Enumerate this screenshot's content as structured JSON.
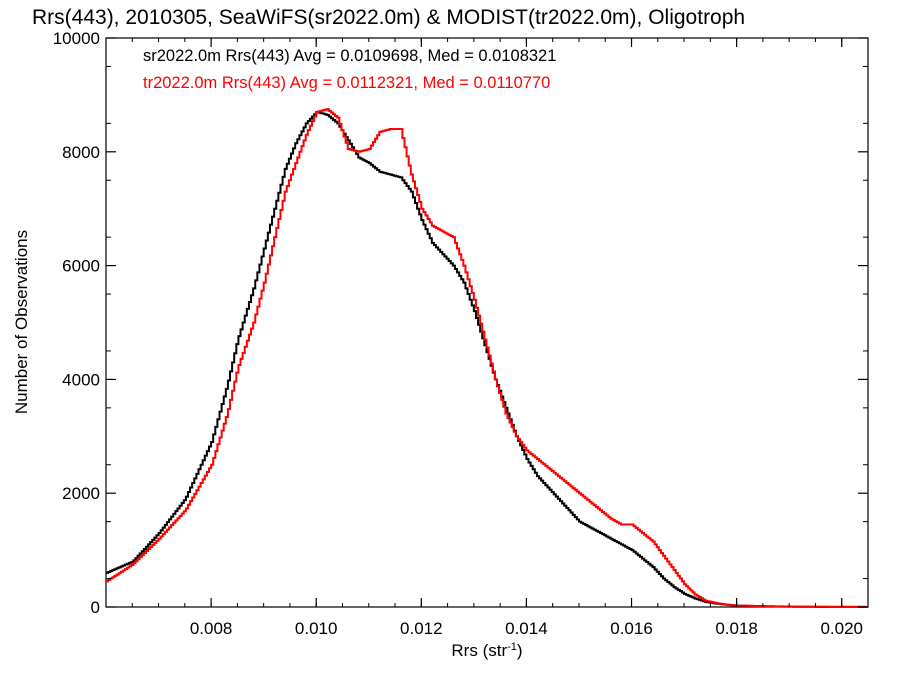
{
  "chart_data": {
    "type": "line",
    "title": "Rrs(443), 2010305, SeaWiFS(sr2022.0m) & MODIST(tr2022.0m), Oligotroph",
    "xlabel_main": "Rrs (str",
    "xlabel_sup": "-1",
    "xlabel_close": ")",
    "ylabel": "Number of Observations",
    "xlim": [
      0.006,
      0.0205
    ],
    "ylim": [
      0,
      10000
    ],
    "xticks": [
      0.008,
      0.01,
      0.012,
      0.014,
      0.016,
      0.018,
      0.02
    ],
    "xtick_labels": [
      "0.008",
      "0.010",
      "0.012",
      "0.014",
      "0.016",
      "0.018",
      "0.020"
    ],
    "yticks": [
      0,
      2000,
      4000,
      6000,
      8000,
      10000
    ],
    "ytick_labels": [
      "0",
      "2000",
      "4000",
      "6000",
      "8000",
      "10000"
    ],
    "grid": false,
    "legend_position": "top-left",
    "colors": {
      "series1": "#000000",
      "series2": "#ff0000"
    },
    "series": [
      {
        "name": "sr2022.0m Rrs(443) Avg = 0.0109698, Med = 0.0108321",
        "x": [
          0.006,
          0.0065,
          0.007,
          0.0075,
          0.008,
          0.0083,
          0.0085,
          0.0088,
          0.009,
          0.0092,
          0.0094,
          0.0096,
          0.0098,
          0.01,
          0.0102,
          0.0104,
          0.0106,
          0.0108,
          0.011,
          0.0112,
          0.0114,
          0.0116,
          0.0118,
          0.012,
          0.0122,
          0.0124,
          0.0126,
          0.0128,
          0.013,
          0.0132,
          0.0134,
          0.0136,
          0.0138,
          0.014,
          0.0142,
          0.0144,
          0.0146,
          0.0148,
          0.015,
          0.0152,
          0.0154,
          0.0156,
          0.0158,
          0.016,
          0.0162,
          0.0164,
          0.0166,
          0.0168,
          0.017,
          0.0172,
          0.0174,
          0.0176,
          0.0178,
          0.018,
          0.0185,
          0.019,
          0.0195,
          0.02,
          0.0205
        ],
        "y": [
          600,
          800,
          1300,
          1900,
          2900,
          3900,
          4700,
          5600,
          6300,
          7000,
          7700,
          8150,
          8500,
          8700,
          8650,
          8500,
          8200,
          7900,
          7800,
          7650,
          7600,
          7550,
          7300,
          6800,
          6400,
          6200,
          6000,
          5700,
          5200,
          4600,
          4000,
          3500,
          3000,
          2600,
          2300,
          2100,
          1900,
          1700,
          1500,
          1400,
          1300,
          1200,
          1100,
          1000,
          850,
          700,
          500,
          350,
          230,
          150,
          90,
          60,
          40,
          25,
          12,
          6,
          3,
          2,
          1
        ]
      },
      {
        "name": "tr2022.0m Rrs(443) Avg = 0.0112321, Med = 0.0110770",
        "x": [
          0.006,
          0.0065,
          0.007,
          0.0075,
          0.008,
          0.0083,
          0.0085,
          0.0088,
          0.009,
          0.0092,
          0.0094,
          0.0096,
          0.0098,
          0.01,
          0.0102,
          0.0104,
          0.0106,
          0.0108,
          0.011,
          0.0112,
          0.0114,
          0.0116,
          0.0118,
          0.012,
          0.0122,
          0.0124,
          0.0126,
          0.0128,
          0.013,
          0.0132,
          0.0134,
          0.0136,
          0.0138,
          0.014,
          0.0142,
          0.0144,
          0.0146,
          0.0148,
          0.015,
          0.0152,
          0.0154,
          0.0156,
          0.0158,
          0.016,
          0.0162,
          0.0164,
          0.0166,
          0.0168,
          0.017,
          0.0172,
          0.0174,
          0.0176,
          0.0178,
          0.018,
          0.0185,
          0.019,
          0.0195,
          0.02,
          0.0205
        ],
        "y": [
          450,
          750,
          1200,
          1700,
          2500,
          3400,
          4200,
          5000,
          5700,
          6500,
          7300,
          7800,
          8300,
          8700,
          8750,
          8600,
          8050,
          8000,
          8050,
          8350,
          8400,
          8400,
          7600,
          7000,
          6700,
          6600,
          6500,
          6000,
          5400,
          4700,
          4000,
          3400,
          3000,
          2750,
          2600,
          2450,
          2300,
          2150,
          2000,
          1850,
          1700,
          1550,
          1450,
          1450,
          1300,
          1150,
          900,
          650,
          400,
          220,
          110,
          70,
          40,
          25,
          15,
          8,
          4,
          2,
          1
        ]
      }
    ]
  }
}
